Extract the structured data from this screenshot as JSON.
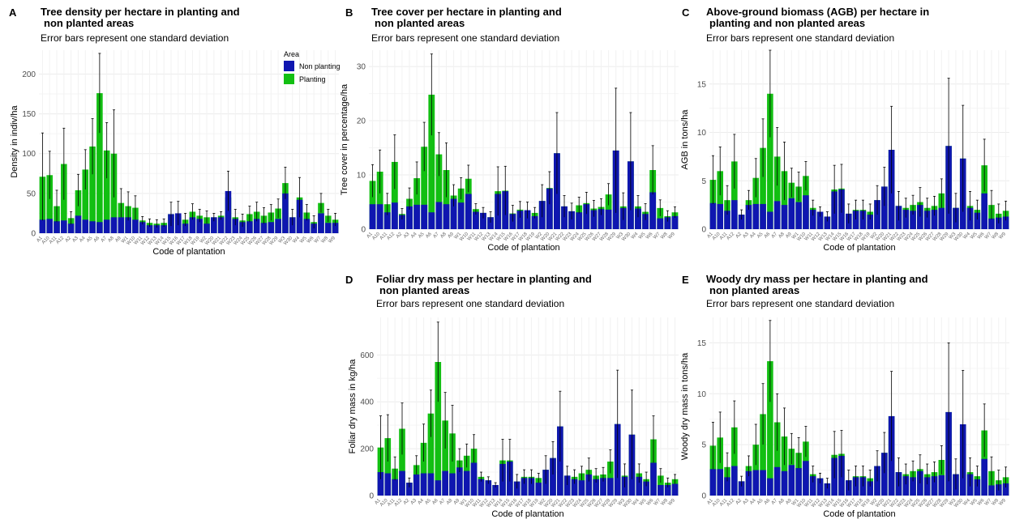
{
  "colors": {
    "non_planting": "#0f16b0",
    "planting": "#12bf12",
    "error_bar": "#000000",
    "grid": "#ececec"
  },
  "legend": {
    "title": "Area",
    "items": [
      {
        "label": "Non planting",
        "color": "#0f16b0"
      },
      {
        "label": "Planting",
        "color": "#12bf12"
      }
    ]
  },
  "chart_data": [
    {
      "id": "A",
      "letter": "A",
      "title_lines": [
        "Tree density per hectare in planting and",
        "non planted areas"
      ],
      "subtitle": "Error bars represent one standard deviation",
      "type": "bar",
      "ylabel": "Density in indiv/ha",
      "xlabel": "Code of plantation",
      "ylim": [
        0,
        230
      ],
      "yticks": [
        0,
        50,
        100,
        150,
        200
      ],
      "categories": [
        "A1",
        "A10",
        "A11",
        "A12",
        "A2",
        "A3",
        "A4",
        "A5",
        "A6",
        "A7",
        "A8",
        "A9",
        "W1",
        "W10",
        "W11",
        "W12",
        "W13",
        "W14",
        "W15",
        "W16",
        "W17",
        "W18",
        "W19",
        "W2",
        "W20",
        "W21",
        "W22",
        "W23",
        "W24",
        "W25",
        "W26",
        "W27",
        "W28",
        "W29",
        "W3",
        "W30",
        "W4",
        "W5",
        "W6",
        "W7",
        "W8",
        "W9"
      ],
      "series": [
        {
          "name": "Non planting",
          "values": [
            17,
            18,
            15,
            16,
            12,
            22,
            17,
            15,
            14,
            17,
            20,
            20,
            20,
            17,
            14,
            10,
            10,
            10,
            24,
            25,
            12,
            20,
            18,
            12,
            20,
            20,
            53,
            18,
            14,
            15,
            18,
            13,
            14,
            18,
            50,
            20,
            42,
            18,
            12,
            25,
            13,
            13
          ]
        },
        {
          "name": "Planting",
          "values": [
            71,
            73,
            34,
            87,
            19,
            54,
            80,
            109,
            176,
            104,
            100,
            38,
            34,
            32,
            16,
            13,
            12,
            13,
            24,
            22,
            17,
            27,
            22,
            20,
            20,
            22,
            45,
            20,
            16,
            24,
            27,
            22,
            26,
            31,
            63,
            20,
            45,
            26,
            14,
            38,
            22,
            17
          ]
        }
      ],
      "errors": [
        55,
        30,
        20,
        45,
        8,
        20,
        25,
        35,
        50,
        35,
        55,
        18,
        18,
        15,
        5,
        5,
        5,
        5,
        15,
        15,
        8,
        10,
        8,
        8,
        5,
        5,
        25,
        10,
        8,
        10,
        12,
        10,
        10,
        12,
        20,
        10,
        25,
        10,
        8,
        12,
        8,
        8
      ]
    },
    {
      "id": "B",
      "letter": "B",
      "title_lines": [
        "Tree cover per hectare in planting and",
        "non planted areas"
      ],
      "subtitle": "Error bars represent one standard deviation",
      "type": "bar",
      "ylabel": "Tree cover in percentage/ha",
      "xlabel": "Code of plantation",
      "ylim": [
        0,
        33
      ],
      "yticks": [
        0,
        10,
        20,
        30
      ],
      "categories": [
        "A1",
        "A10",
        "A11",
        "A12",
        "A2",
        "A3",
        "A4",
        "A5",
        "A6",
        "A7",
        "A8",
        "A9",
        "W1",
        "W10",
        "W11",
        "W12",
        "W13",
        "W14",
        "W15",
        "W16",
        "W17",
        "W18",
        "W19",
        "W2",
        "W20",
        "W21",
        "W22",
        "W23",
        "W24",
        "W25",
        "W26",
        "W27",
        "W28",
        "W29",
        "W3",
        "W30",
        "W4",
        "W5",
        "W6",
        "W7",
        "W8",
        "W9"
      ],
      "series": [
        {
          "name": "Non planting",
          "values": [
            4.6,
            4.6,
            3.1,
            4.9,
            2.6,
            4.2,
            4.5,
            4.5,
            3.1,
            5.0,
            4.6,
            5.6,
            4.9,
            6.5,
            3.2,
            3.0,
            2.2,
            6.5,
            7.0,
            2.8,
            3.4,
            3.5,
            2.4,
            5.2,
            7.5,
            14.0,
            4.2,
            3.3,
            3.1,
            4.6,
            3.5,
            3.7,
            3.6,
            14.5,
            3.9,
            12.5,
            3.8,
            2.8,
            6.8,
            2.0,
            2.2,
            2.4
          ]
        },
        {
          "name": "Planting",
          "values": [
            8.9,
            10.6,
            4.6,
            12.4,
            2.8,
            5.6,
            9.4,
            15.2,
            24.8,
            13.8,
            10.9,
            6.2,
            7.5,
            9.3,
            3.7,
            3.0,
            2.2,
            7.0,
            7.1,
            2.9,
            3.6,
            3.2,
            3.0,
            5.2,
            7.6,
            14.0,
            4.2,
            3.3,
            4.4,
            4.8,
            3.8,
            4.1,
            6.4,
            14.5,
            4.2,
            12.5,
            4.2,
            3.2,
            10.9,
            3.9,
            2.4,
            3.1
          ]
        }
      ],
      "errors": [
        3,
        4,
        2,
        5,
        1,
        2,
        3,
        4.5,
        7.5,
        4,
        5,
        2,
        2,
        2.5,
        1,
        1,
        1,
        4.5,
        4.5,
        1.5,
        1.5,
        1.5,
        1,
        3,
        3,
        7.5,
        2,
        1.5,
        1.5,
        2,
        1.5,
        1.5,
        2,
        11.5,
        2.5,
        9,
        2,
        1.5,
        4.5,
        1.5,
        1,
        1
      ]
    },
    {
      "id": "C",
      "letter": "C",
      "title_lines": [
        "Above-ground biomass (AGB) per hectare in",
        "planting and non planted areas"
      ],
      "subtitle": "Error bars represent one standard deviation",
      "type": "bar",
      "ylabel": "AGB in tons/ha",
      "xlabel": "Code of plantation",
      "ylim": [
        0,
        18.5
      ],
      "yticks": [
        0,
        5,
        10,
        15
      ],
      "categories": [
        "A1",
        "A10",
        "A11",
        "A12",
        "A2",
        "A3",
        "A4",
        "A5",
        "A6",
        "A7",
        "A8",
        "A9",
        "W1",
        "W10",
        "W11",
        "W12",
        "W13",
        "W14",
        "W15",
        "W16",
        "W17",
        "W18",
        "W19",
        "W2",
        "W20",
        "W21",
        "W22",
        "W23",
        "W24",
        "W25",
        "W26",
        "W27",
        "W28",
        "W29",
        "W3",
        "W30",
        "W4",
        "W5",
        "W6",
        "W7",
        "W8",
        "W9"
      ],
      "series": [
        {
          "name": "Non planting",
          "values": [
            2.7,
            2.6,
            1.9,
            3.0,
            1.5,
            2.5,
            2.6,
            2.6,
            1.8,
            2.9,
            2.5,
            3.2,
            2.8,
            3.5,
            2.0,
            1.8,
            1.3,
            3.9,
            4.1,
            1.6,
            1.9,
            1.9,
            1.5,
            3.0,
            4.4,
            8.2,
            2.4,
            2.0,
            1.9,
            2.5,
            1.9,
            2.0,
            2.2,
            8.6,
            2.2,
            7.3,
            2.2,
            1.7,
            3.7,
            1.1,
            1.2,
            1.3
          ]
        },
        {
          "name": "Planting",
          "values": [
            5.1,
            6.0,
            3.0,
            7.0,
            1.5,
            3.0,
            5.3,
            8.4,
            14.0,
            7.5,
            6.0,
            4.8,
            4.4,
            5.5,
            2.2,
            1.8,
            1.3,
            4.1,
            4.2,
            1.6,
            2.0,
            2.0,
            1.8,
            3.0,
            4.4,
            8.2,
            2.4,
            2.2,
            2.5,
            2.8,
            2.2,
            2.4,
            3.7,
            8.6,
            2.2,
            7.3,
            2.4,
            2.0,
            6.6,
            2.5,
            1.6,
            1.9
          ]
        }
      ],
      "errors": [
        2.5,
        2.5,
        1.5,
        2.8,
        0.5,
        1,
        2,
        3,
        4.5,
        3,
        3,
        1.5,
        1.5,
        1.5,
        0.8,
        0.5,
        0.5,
        2.5,
        2.5,
        1,
        1,
        1,
        0.8,
        1.5,
        2,
        4.5,
        1.5,
        1,
        1,
        1.5,
        1,
        1,
        1.5,
        7,
        1.5,
        5.5,
        1.5,
        1,
        2.7,
        1.5,
        1,
        1
      ]
    },
    {
      "id": "D",
      "letter": "D",
      "title_lines": [
        "Foliar dry mass per hectare in planting and",
        "non planted areas"
      ],
      "subtitle": "Error bars represent one standard deviation",
      "type": "bar",
      "ylabel": "Foliar dry mass in kg/ha",
      "xlabel": "Code of plantation",
      "ylim": [
        0,
        760
      ],
      "yticks": [
        0,
        200,
        400,
        600
      ],
      "categories": [
        "A1",
        "A10",
        "A11",
        "A12",
        "A2",
        "A3",
        "A4",
        "A5",
        "A6",
        "A7",
        "A8",
        "A9",
        "W1",
        "W10",
        "W11",
        "W12",
        "W13",
        "W14",
        "W15",
        "W16",
        "W17",
        "W18",
        "W19",
        "W2",
        "W20",
        "W21",
        "W22",
        "W23",
        "W24",
        "W25",
        "W26",
        "W27",
        "W28",
        "W29",
        "W3",
        "W30",
        "W4",
        "W5",
        "W6",
        "W7",
        "W8",
        "W9"
      ],
      "series": [
        {
          "name": "Non planting",
          "values": [
            100,
            95,
            70,
            105,
            55,
            90,
            95,
            95,
            65,
            105,
            95,
            120,
            105,
            140,
            70,
            65,
            45,
            135,
            145,
            60,
            75,
            75,
            55,
            110,
            160,
            295,
            85,
            70,
            65,
            90,
            70,
            75,
            75,
            305,
            80,
            260,
            80,
            60,
            140,
            45,
            45,
            50
          ]
        },
        {
          "name": "Planting",
          "values": [
            205,
            245,
            115,
            285,
            55,
            130,
            225,
            350,
            570,
            320,
            265,
            150,
            170,
            200,
            80,
            65,
            45,
            150,
            150,
            60,
            80,
            80,
            75,
            110,
            160,
            295,
            85,
            80,
            95,
            110,
            85,
            90,
            145,
            305,
            85,
            260,
            95,
            70,
            240,
            85,
            55,
            70
          ]
        }
      ],
      "errors": [
        135,
        100,
        50,
        110,
        20,
        40,
        80,
        100,
        170,
        120,
        120,
        50,
        50,
        60,
        20,
        15,
        10,
        90,
        90,
        30,
        30,
        30,
        20,
        60,
        70,
        150,
        40,
        30,
        30,
        50,
        30,
        30,
        50,
        230,
        50,
        190,
        40,
        30,
        100,
        30,
        20,
        20
      ]
    },
    {
      "id": "E",
      "letter": "E",
      "title_lines": [
        "Woody dry mass per hectare in planting and",
        "non planted areas"
      ],
      "subtitle": "Error bars represent one standard deviation",
      "type": "bar",
      "ylabel": "Woody dry mass in tons/ha",
      "xlabel": "Code of plantation",
      "ylim": [
        0,
        17.5
      ],
      "yticks": [
        0,
        5,
        10,
        15
      ],
      "categories": [
        "A1",
        "A10",
        "A11",
        "A12",
        "A2",
        "A3",
        "A4",
        "A5",
        "A6",
        "A7",
        "A8",
        "A9",
        "W1",
        "W10",
        "W11",
        "W12",
        "W13",
        "W14",
        "W15",
        "W16",
        "W17",
        "W18",
        "W19",
        "W2",
        "W20",
        "W21",
        "W22",
        "W23",
        "W24",
        "W25",
        "W26",
        "W27",
        "W28",
        "W29",
        "W3",
        "W30",
        "W4",
        "W5",
        "W6",
        "W7",
        "W8",
        "W9"
      ],
      "series": [
        {
          "name": "Non planting",
          "values": [
            2.6,
            2.6,
            1.8,
            2.9,
            1.4,
            2.4,
            2.5,
            2.5,
            1.7,
            2.8,
            2.4,
            3.0,
            2.7,
            3.4,
            1.9,
            1.7,
            1.2,
            3.7,
            3.9,
            1.5,
            1.8,
            1.8,
            1.4,
            2.9,
            4.2,
            7.8,
            2.3,
            1.9,
            1.8,
            2.4,
            1.8,
            1.9,
            2.0,
            8.2,
            2.1,
            7.0,
            2.1,
            1.6,
            3.6,
            1.0,
            1.1,
            1.2
          ]
        },
        {
          "name": "Planting",
          "values": [
            4.9,
            5.7,
            2.8,
            6.7,
            1.4,
            2.9,
            5.0,
            8.0,
            13.2,
            7.2,
            5.8,
            4.6,
            4.2,
            5.3,
            2.1,
            1.7,
            1.2,
            4.0,
            4.1,
            1.5,
            1.9,
            1.9,
            1.7,
            2.9,
            4.2,
            7.8,
            2.3,
            2.1,
            2.4,
            2.6,
            2.1,
            2.3,
            3.5,
            8.2,
            2.1,
            7.0,
            2.3,
            1.9,
            6.4,
            2.4,
            1.5,
            1.8
          ]
        }
      ],
      "errors": [
        2.3,
        2.5,
        1.4,
        2.6,
        0.5,
        1,
        2,
        3,
        4,
        2.8,
        2.8,
        1.5,
        1.5,
        1.5,
        0.8,
        0.5,
        0.5,
        2.3,
        2.3,
        1,
        1,
        1,
        0.8,
        1.5,
        2,
        4.4,
        1.4,
        1,
        1,
        1.4,
        1,
        1,
        1.4,
        6.8,
        1.5,
        5.3,
        1.4,
        1,
        2.6,
        1.4,
        1,
        1
      ]
    }
  ]
}
